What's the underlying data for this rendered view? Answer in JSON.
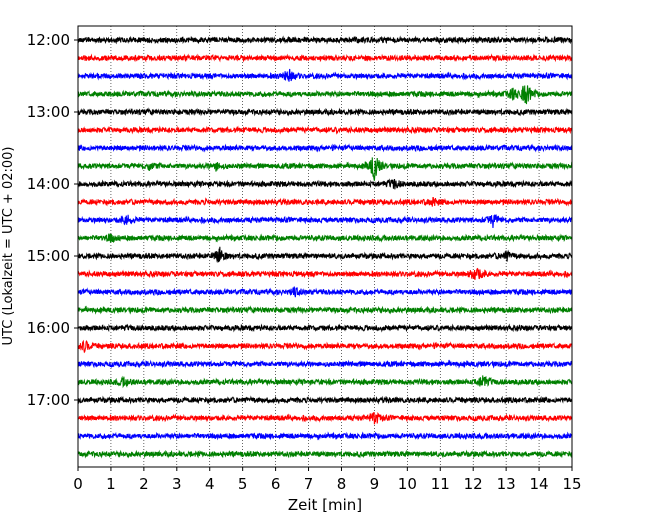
{
  "chart_data": {
    "type": "line",
    "title": "",
    "xlabel": "Zeit  [min]",
    "ylabel": "UTC (Lokalzeit = UTC + 02:00)",
    "xlim": [
      0,
      15
    ],
    "x_ticks": [
      "0",
      "1",
      "2",
      "3",
      "4",
      "5",
      "6",
      "7",
      "8",
      "9",
      "10",
      "11",
      "12",
      "13",
      "14",
      "15"
    ],
    "y_ticks": [
      "12:00",
      "13:00",
      "14:00",
      "15:00",
      "16:00",
      "17:00"
    ],
    "grid_x": "dotted",
    "trace_interval_min": 15,
    "first_trace": "12:00",
    "trace_colors": [
      "#000000",
      "#ff0000",
      "#0000ff",
      "#008000"
    ],
    "traces": [
      {
        "start": "12:00",
        "color": "#000000",
        "events": []
      },
      {
        "start": "12:15",
        "color": "#ff0000",
        "events": []
      },
      {
        "start": "12:30",
        "color": "#0000ff",
        "events": [
          {
            "t": 6.4,
            "amp": 8
          }
        ]
      },
      {
        "start": "12:45",
        "color": "#008000",
        "events": [
          {
            "t": 13.6,
            "amp": 14
          },
          {
            "t": 13.2,
            "amp": 6
          }
        ]
      },
      {
        "start": "13:00",
        "color": "#000000",
        "events": []
      },
      {
        "start": "13:15",
        "color": "#ff0000",
        "events": []
      },
      {
        "start": "13:30",
        "color": "#0000ff",
        "events": []
      },
      {
        "start": "13:45",
        "color": "#008000",
        "events": [
          {
            "t": 9.0,
            "amp": 16
          },
          {
            "t": 2.2,
            "amp": 4
          },
          {
            "t": 4.2,
            "amp": 5
          }
        ]
      },
      {
        "start": "14:00",
        "color": "#000000",
        "events": [
          {
            "t": 9.6,
            "amp": 5
          }
        ]
      },
      {
        "start": "14:15",
        "color": "#ff0000",
        "events": [
          {
            "t": 10.8,
            "amp": 4
          }
        ]
      },
      {
        "start": "14:30",
        "color": "#0000ff",
        "events": [
          {
            "t": 1.5,
            "amp": 6
          },
          {
            "t": 12.6,
            "amp": 7
          }
        ]
      },
      {
        "start": "14:45",
        "color": "#008000",
        "events": [
          {
            "t": 1.0,
            "amp": 4
          }
        ]
      },
      {
        "start": "15:00",
        "color": "#000000",
        "events": [
          {
            "t": 4.3,
            "amp": 9
          },
          {
            "t": 13.0,
            "amp": 5
          }
        ]
      },
      {
        "start": "15:15",
        "color": "#ff0000",
        "events": [
          {
            "t": 12.1,
            "amp": 10
          }
        ]
      },
      {
        "start": "15:30",
        "color": "#0000ff",
        "events": [
          {
            "t": 6.6,
            "amp": 5
          }
        ]
      },
      {
        "start": "15:45",
        "color": "#008000",
        "events": []
      },
      {
        "start": "16:00",
        "color": "#000000",
        "events": []
      },
      {
        "start": "16:15",
        "color": "#ff0000",
        "events": [
          {
            "t": 0.2,
            "amp": 6
          }
        ]
      },
      {
        "start": "16:30",
        "color": "#0000ff",
        "events": []
      },
      {
        "start": "16:45",
        "color": "#008000",
        "events": [
          {
            "t": 1.4,
            "amp": 5
          },
          {
            "t": 12.3,
            "amp": 8
          }
        ]
      },
      {
        "start": "17:00",
        "color": "#000000",
        "events": []
      },
      {
        "start": "17:15",
        "color": "#ff0000",
        "events": [
          {
            "t": 9.0,
            "amp": 8
          }
        ]
      },
      {
        "start": "17:30",
        "color": "#0000ff",
        "events": []
      },
      {
        "start": "17:45",
        "color": "#008000",
        "events": []
      }
    ]
  }
}
